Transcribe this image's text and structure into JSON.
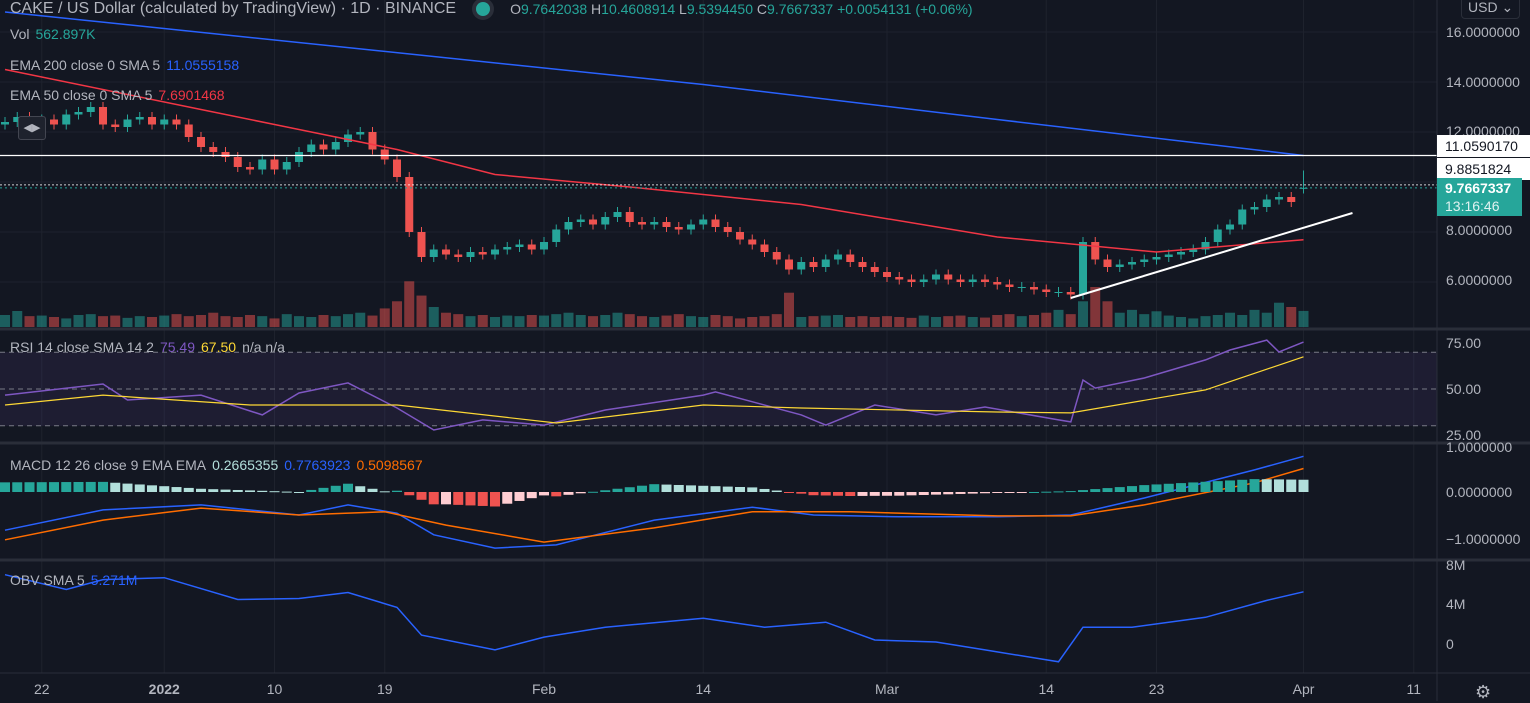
{
  "header": {
    "title": "CAKE / US Dollar (calculated by TradingView) · 1D · BINANCE",
    "o_label": "O",
    "o": "9.7642038",
    "h_label": "H",
    "h": "10.4608914",
    "l_label": "L",
    "l": "9.5394450",
    "c_label": "C",
    "c": "9.7667337",
    "change": "+0.0054131 (+0.06%)"
  },
  "legends": {
    "vol_label": "Vol",
    "vol_value": "562.897K",
    "ema200_label": "EMA 200 close 0 SMA 5",
    "ema200_value": "11.0555158",
    "ema50_label": "EMA 50 close 0 SMA 5",
    "ema50_value": "7.6901468",
    "rsi_label": "RSI 14 close SMA 14 2",
    "rsi_value": "75.49",
    "rsi_sma_value": "67.50",
    "rsi_na": "n/a n/a",
    "macd_label": "MACD 12 26 close 9 EMA EMA",
    "macd_hist_value": "0.2665355",
    "macd_value": "0.7763923",
    "macd_signal_value": "0.5098567",
    "obv_label": "OBV SMA 5",
    "obv_value": "5.271M"
  },
  "price_axis": {
    "currency": "USD",
    "labels": [
      "16.0000000",
      "14.0000000",
      "12.0000000",
      "8.0000000",
      "6.0000000"
    ],
    "ema200_badge": "11.0590170",
    "line_badge": "9.8851824",
    "last_price_badge": "9.7667337",
    "countdown": "13:16:46"
  },
  "rsi_axis": {
    "labels": [
      "75.00",
      "50.00",
      "25.00"
    ]
  },
  "macd_axis": {
    "labels": [
      "1.0000000",
      "0.0000000",
      "−1.0000000"
    ]
  },
  "obv_axis": {
    "labels": [
      "8M",
      "4M",
      "0"
    ]
  },
  "time_axis": {
    "labels": [
      "22",
      "2022",
      "10",
      "19",
      "Feb",
      "14",
      "Mar",
      "14",
      "23",
      "Apr",
      "11"
    ]
  },
  "colors": {
    "up": "#26a69a",
    "down": "#ef5350",
    "ema200": "#2962ff",
    "ema50": "#f23645",
    "rsi": "#7e57c2",
    "rsi_sma": "#fdd835",
    "macd": "#2962ff",
    "signal": "#ff6d00",
    "obv": "#2962ff",
    "bg": "#131722"
  },
  "chart_data": {
    "type": "candlestick",
    "title": "CAKE / US Dollar · 1D · BINANCE",
    "x_start": "2021-12-19",
    "time_tick_index": [
      3,
      13,
      22,
      31,
      44,
      57,
      72,
      85,
      94,
      106,
      115
    ],
    "close": [
      12.4,
      12.6,
      12.2,
      12.5,
      12.3,
      12.7,
      12.8,
      13.0,
      12.3,
      12.2,
      12.5,
      12.6,
      12.3,
      12.5,
      12.3,
      11.8,
      11.4,
      11.2,
      11.0,
      10.6,
      10.5,
      10.9,
      10.5,
      10.8,
      11.2,
      11.5,
      11.3,
      11.6,
      11.9,
      12.0,
      11.3,
      10.9,
      10.2,
      8.0,
      7.0,
      7.3,
      7.1,
      7.0,
      7.2,
      7.1,
      7.3,
      7.4,
      7.5,
      7.3,
      7.6,
      8.1,
      8.4,
      8.5,
      8.3,
      8.6,
      8.8,
      8.4,
      8.3,
      8.4,
      8.2,
      8.1,
      8.3,
      8.5,
      8.2,
      8.0,
      7.7,
      7.5,
      7.2,
      6.9,
      6.5,
      6.8,
      6.6,
      6.9,
      7.1,
      6.8,
      6.6,
      6.4,
      6.2,
      6.1,
      6.0,
      6.1,
      6.3,
      6.1,
      6.0,
      6.1,
      6.0,
      5.9,
      5.8,
      5.8,
      5.7,
      5.6,
      5.6,
      5.5,
      7.6,
      6.9,
      6.6,
      6.7,
      6.8,
      6.9,
      7.0,
      7.1,
      7.2,
      7.3,
      7.6,
      8.1,
      8.3,
      8.9,
      9.0,
      9.3,
      9.4,
      9.2,
      9.7667337
    ],
    "first_open": 12.3,
    "last_candle": {
      "open": 9.7642038,
      "high": 10.4608914,
      "low": 9.539445,
      "close": 9.7667337
    },
    "volume_k": [
      420,
      560,
      380,
      400,
      350,
      300,
      420,
      450,
      380,
      400,
      320,
      380,
      350,
      400,
      450,
      380,
      420,
      500,
      380,
      350,
      420,
      380,
      300,
      450,
      380,
      350,
      420,
      380,
      450,
      500,
      400,
      650,
      900,
      1600,
      1100,
      700,
      500,
      450,
      380,
      420,
      350,
      400,
      380,
      420,
      400,
      450,
      500,
      420,
      380,
      420,
      500,
      450,
      380,
      350,
      400,
      450,
      380,
      350,
      420,
      380,
      300,
      350,
      380,
      450,
      1200,
      350,
      380,
      400,
      420,
      350,
      380,
      350,
      380,
      350,
      320,
      400,
      350,
      380,
      400,
      350,
      330,
      420,
      450,
      380,
      420,
      500,
      600,
      450,
      900,
      1400,
      900,
      500,
      600,
      450,
      550,
      400,
      350,
      300,
      380,
      420,
      500,
      420,
      600,
      500,
      850,
      700,
      562.897
    ],
    "ema200": [
      [
        0,
        16.8
      ],
      [
        57,
        13.9
      ],
      [
        81,
        12.5
      ],
      [
        106,
        11.06
      ]
    ],
    "ema50": [
      [
        0,
        14.5
      ],
      [
        16,
        12.9
      ],
      [
        32,
        11.3
      ],
      [
        40,
        10.3
      ],
      [
        51,
        9.8
      ],
      [
        65,
        9.1
      ],
      [
        81,
        7.8
      ],
      [
        94,
        7.2
      ],
      [
        106,
        7.69
      ]
    ],
    "horizontal_lines": [
      11.059017,
      9.8851824
    ],
    "trendline": [
      [
        87,
        5.36
      ],
      [
        110,
        8.76
      ]
    ],
    "ylim": [
      4.4,
      17.3
    ],
    "rsi": [
      [
        0,
        46.7
      ],
      [
        8,
        52.7
      ],
      [
        10,
        44
      ],
      [
        16,
        46.7
      ],
      [
        21,
        35.9
      ],
      [
        24,
        47.8
      ],
      [
        28,
        53.3
      ],
      [
        32,
        39.7
      ],
      [
        35,
        27.7
      ],
      [
        39,
        33.2
      ],
      [
        44,
        30.4
      ],
      [
        49,
        38.6
      ],
      [
        57,
        46.7
      ],
      [
        58,
        48.4
      ],
      [
        65,
        35.9
      ],
      [
        67,
        30.4
      ],
      [
        71,
        41.3
      ],
      [
        76,
        35.9
      ],
      [
        80,
        40.2
      ],
      [
        86,
        33.2
      ],
      [
        87,
        32.1
      ],
      [
        88,
        54.9
      ],
      [
        89,
        50.5
      ],
      [
        93,
        56
      ],
      [
        98,
        65.8
      ],
      [
        100,
        71.2
      ],
      [
        103,
        76.6
      ],
      [
        104,
        70.1
      ],
      [
        106,
        75.49
      ]
    ],
    "rsi_sma": [
      [
        0,
        41.3
      ],
      [
        8,
        46.7
      ],
      [
        20,
        41.3
      ],
      [
        32,
        41.3
      ],
      [
        45,
        31.5
      ],
      [
        57,
        41.3
      ],
      [
        65,
        39.7
      ],
      [
        81,
        37.5
      ],
      [
        87,
        37
      ],
      [
        98,
        49.5
      ],
      [
        106,
        67.5
      ]
    ],
    "rsi_levels": [
      70,
      50,
      30
    ],
    "macd": [
      [
        0,
        -0.83
      ],
      [
        8,
        -0.39
      ],
      [
        16,
        -0.28
      ],
      [
        24,
        -0.5
      ],
      [
        28,
        -0.28
      ],
      [
        32,
        -0.46
      ],
      [
        35,
        -0.93
      ],
      [
        40,
        -1.22
      ],
      [
        45,
        -1.15
      ],
      [
        53,
        -0.61
      ],
      [
        61,
        -0.33
      ],
      [
        66,
        -0.5
      ],
      [
        73,
        -0.54
      ],
      [
        81,
        -0.54
      ],
      [
        87,
        -0.5
      ],
      [
        93,
        -0.13
      ],
      [
        102,
        0.48
      ],
      [
        106,
        0.7763923
      ]
    ],
    "macd_signal": [
      [
        0,
        -1.04
      ],
      [
        8,
        -0.61
      ],
      [
        16,
        -0.35
      ],
      [
        24,
        -0.5
      ],
      [
        31,
        -0.43
      ],
      [
        36,
        -0.72
      ],
      [
        44,
        -1.09
      ],
      [
        53,
        -0.78
      ],
      [
        61,
        -0.43
      ],
      [
        69,
        -0.43
      ],
      [
        81,
        -0.52
      ],
      [
        87,
        -0.52
      ],
      [
        93,
        -0.28
      ],
      [
        102,
        0.2
      ],
      [
        106,
        0.5098567
      ]
    ],
    "obv_m": [
      [
        0,
        7.0
      ],
      [
        5,
        5.5
      ],
      [
        8,
        6.5
      ],
      [
        13,
        6.7
      ],
      [
        19,
        4.5
      ],
      [
        24,
        4.6
      ],
      [
        28,
        5.2
      ],
      [
        32,
        3.7
      ],
      [
        34,
        0.9
      ],
      [
        40,
        -0.6
      ],
      [
        44,
        0.7
      ],
      [
        49,
        1.7
      ],
      [
        57,
        2.6
      ],
      [
        62,
        1.7
      ],
      [
        67,
        2.2
      ],
      [
        71,
        0.4
      ],
      [
        76,
        0.2
      ],
      [
        80,
        -0.6
      ],
      [
        86,
        -1.8
      ],
      [
        88,
        1.7
      ],
      [
        92,
        1.7
      ],
      [
        98,
        2.7
      ],
      [
        103,
        4.4
      ],
      [
        106,
        5.271
      ]
    ]
  }
}
